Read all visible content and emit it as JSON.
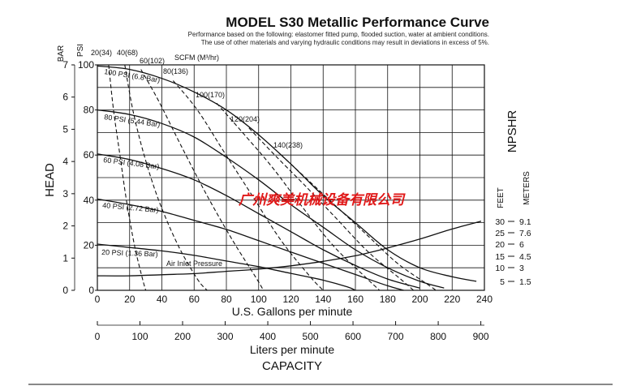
{
  "title": "MODEL S30 Metallic Performance Curve",
  "notes": [
    "Performance based on the following: elastomer fitted pump, flooded suction, water at ambient conditions.",
    "The use of other materials and varying hydraulic conditions may result in deviations in excess of 5%."
  ],
  "watermark": "广州爽美机械设备有限公司",
  "chart_data": {
    "type": "line",
    "x_label": "U.S. Gallons per minute",
    "x_range": [
      0,
      240
    ],
    "x_ticks": [
      0,
      20,
      40,
      60,
      80,
      100,
      120,
      140,
      160,
      180,
      200,
      220,
      240
    ],
    "liters_label": "Liters per minute",
    "liters_ticks": [
      0,
      100,
      200,
      300,
      400,
      500,
      600,
      700,
      800,
      900
    ],
    "capacity_label": "CAPACITY",
    "head_label": "HEAD",
    "psi_label": "PSI",
    "psi_ticks": [
      0,
      20,
      40,
      60,
      80,
      100
    ],
    "bar_label": "BAR",
    "bar_ticks": [
      0,
      1,
      2,
      3,
      4,
      5,
      6,
      7
    ],
    "y_range": [
      0,
      100
    ],
    "npshr_label": "NPSHR",
    "npshr_feet_label": "FEET",
    "npshr_meters_label": "METERS",
    "npshr_feet_ticks": [
      "30",
      "25",
      "20",
      "15",
      "10",
      "5"
    ],
    "npshr_meters_ticks": [
      "9.1",
      "7.6",
      "6",
      "4.5",
      "3",
      "1.5"
    ],
    "scfm_label": "SCFM (M³/hr)",
    "air_inlet_label": "Air Inlet Pressure",
    "pressure_curves": [
      {
        "name": "100 PSI (6.8 Bar)",
        "points": [
          [
            0,
            99.5
          ],
          [
            20,
            98
          ],
          [
            40,
            94
          ],
          [
            60,
            88
          ],
          [
            80,
            80
          ],
          [
            100,
            69
          ],
          [
            120,
            56
          ],
          [
            140,
            42
          ],
          [
            160,
            30
          ],
          [
            180,
            18
          ],
          [
            200,
            10
          ],
          [
            220,
            6
          ],
          [
            235,
            4
          ]
        ]
      },
      {
        "name": "80 PSI (5.44 Bar)",
        "points": [
          [
            0,
            80
          ],
          [
            20,
            78
          ],
          [
            40,
            74
          ],
          [
            60,
            68
          ],
          [
            80,
            59
          ],
          [
            100,
            49
          ],
          [
            120,
            38
          ],
          [
            140,
            28
          ],
          [
            160,
            18
          ],
          [
            180,
            10
          ],
          [
            200,
            4
          ],
          [
            215,
            1
          ]
        ]
      },
      {
        "name": "60 PSI (4.08 Bar)",
        "points": [
          [
            0,
            60.5
          ],
          [
            20,
            58
          ],
          [
            40,
            54
          ],
          [
            60,
            49
          ],
          [
            80,
            42
          ],
          [
            100,
            34
          ],
          [
            120,
            26
          ],
          [
            140,
            18
          ],
          [
            160,
            11
          ],
          [
            180,
            5
          ],
          [
            200,
            1
          ]
        ]
      },
      {
        "name": "40 PSI (2.72 Bar)",
        "points": [
          [
            0,
            40.5
          ],
          [
            20,
            38
          ],
          [
            40,
            35
          ],
          [
            60,
            31
          ],
          [
            80,
            27
          ],
          [
            100,
            22
          ],
          [
            120,
            17
          ],
          [
            140,
            12
          ],
          [
            160,
            7
          ],
          [
            180,
            2
          ],
          [
            190,
            0
          ]
        ]
      },
      {
        "name": "20 PSI (1.36 Bar)",
        "points": [
          [
            0,
            20.5
          ],
          [
            20,
            19
          ],
          [
            40,
            17.5
          ],
          [
            60,
            15.5
          ],
          [
            80,
            13
          ],
          [
            100,
            10.5
          ],
          [
            120,
            7.5
          ],
          [
            140,
            4.5
          ],
          [
            155,
            1.5
          ],
          [
            160,
            0
          ]
        ]
      }
    ],
    "air_curves": [
      {
        "name": "20(34)",
        "points": [
          [
            7,
            100
          ],
          [
            10,
            80
          ],
          [
            14,
            60
          ],
          [
            18,
            40
          ],
          [
            23,
            20
          ],
          [
            28,
            5
          ],
          [
            30,
            0
          ]
        ]
      },
      {
        "name": "40(68)",
        "points": [
          [
            17,
            100
          ],
          [
            22,
            80
          ],
          [
            29,
            60
          ],
          [
            38,
            40
          ],
          [
            50,
            20
          ],
          [
            62,
            5
          ],
          [
            68,
            0
          ]
        ]
      },
      {
        "name": "60(102)",
        "points": [
          [
            27,
            98
          ],
          [
            38,
            84
          ],
          [
            52,
            64
          ],
          [
            68,
            42
          ],
          [
            84,
            22
          ],
          [
            98,
            6
          ],
          [
            103,
            0
          ]
        ]
      },
      {
        "name": "80(136)",
        "points": [
          [
            47,
            93
          ],
          [
            62,
            80
          ],
          [
            78,
            62
          ],
          [
            96,
            42
          ],
          [
            114,
            22
          ],
          [
            132,
            6
          ],
          [
            140,
            0
          ]
        ]
      },
      {
        "name": "100(170)",
        "points": [
          [
            74,
            83
          ],
          [
            90,
            70
          ],
          [
            108,
            55
          ],
          [
            126,
            38
          ],
          [
            146,
            20
          ],
          [
            166,
            6
          ],
          [
            175,
            0
          ]
        ]
      },
      {
        "name": "120(204)",
        "points": [
          [
            94,
            72
          ],
          [
            110,
            60
          ],
          [
            128,
            47
          ],
          [
            148,
            32
          ],
          [
            168,
            17
          ],
          [
            188,
            5
          ],
          [
            196,
            0
          ]
        ]
      },
      {
        "name": "140(238)",
        "points": [
          [
            114,
            60
          ],
          [
            132,
            48
          ],
          [
            150,
            36
          ],
          [
            168,
            24
          ],
          [
            186,
            12
          ],
          [
            204,
            3
          ],
          [
            210,
            0
          ]
        ]
      }
    ],
    "npshr_curve": {
      "points": [
        [
          0,
          6.5
        ],
        [
          20,
          6.5
        ],
        [
          40,
          7
        ],
        [
          60,
          7.5
        ],
        [
          80,
          8.5
        ],
        [
          100,
          9.5
        ],
        [
          120,
          11
        ],
        [
          140,
          13
        ],
        [
          160,
          15.5
        ],
        [
          180,
          19
        ],
        [
          200,
          23
        ],
        [
          220,
          27.5
        ],
        [
          238,
          31
        ]
      ]
    }
  }
}
